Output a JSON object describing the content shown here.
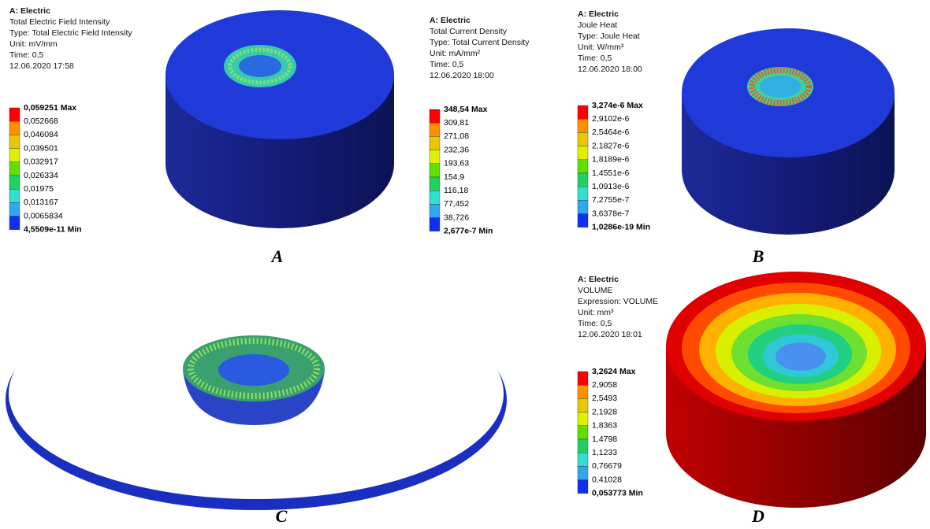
{
  "legends": [
    {
      "header": [
        "A: Electric",
        "Total Electric Field Intensity",
        "Type: Total Electric Field Intensity",
        "Unit: mV/mm",
        "Time: 0,5",
        "12.06.2020 17:58"
      ],
      "labels": [
        "0,059251 Max",
        "0,052668",
        "0,046084",
        "0,039501",
        "0,032917",
        "0,026334",
        "0,01975",
        "0,013167",
        "0,0065834",
        "4,5509e-11 Min"
      ]
    },
    {
      "header": [
        "A: Electric",
        "Total Current Density",
        "Type: Total Current Density",
        "Unit: mA/mm²",
        "Time: 0,5",
        "12.06.2020 18:00"
      ],
      "labels": [
        "348,54 Max",
        "309,81",
        "271,08",
        "232,36",
        "193,63",
        "154,9",
        "116,18",
        "77,452",
        "38,726",
        "2,677e-7 Min"
      ]
    },
    {
      "header": [
        "A: Electric",
        "Joule Heat",
        "Type: Joule Heat",
        "Unit: W/mm³",
        "Time: 0,5",
        "12.06.2020 18:00"
      ],
      "labels": [
        "3,274e-6 Max",
        "2,9102e-6",
        "2,5464e-6",
        "2,1827e-6",
        "1,8189e-6",
        "1,4551e-6",
        "1,0913e-6",
        "7,2755e-7",
        "3,6378e-7",
        "1,0286e-19 Min"
      ]
    },
    {
      "header": [
        "A: Electric",
        "VOLUME",
        "Expression: VOLUME",
        "Unit: mm³",
        "Time: 0,5",
        "12.06.2020 18:01"
      ],
      "labels": [
        "3,2624 Max",
        "2,9058",
        "2,5493",
        "2,1928",
        "1,8363",
        "1,4798",
        "1,1233",
        "0,76679",
        "0,41028",
        "0,053773 Min"
      ]
    }
  ],
  "figure_labels": [
    "A",
    "B",
    "C",
    "D"
  ]
}
